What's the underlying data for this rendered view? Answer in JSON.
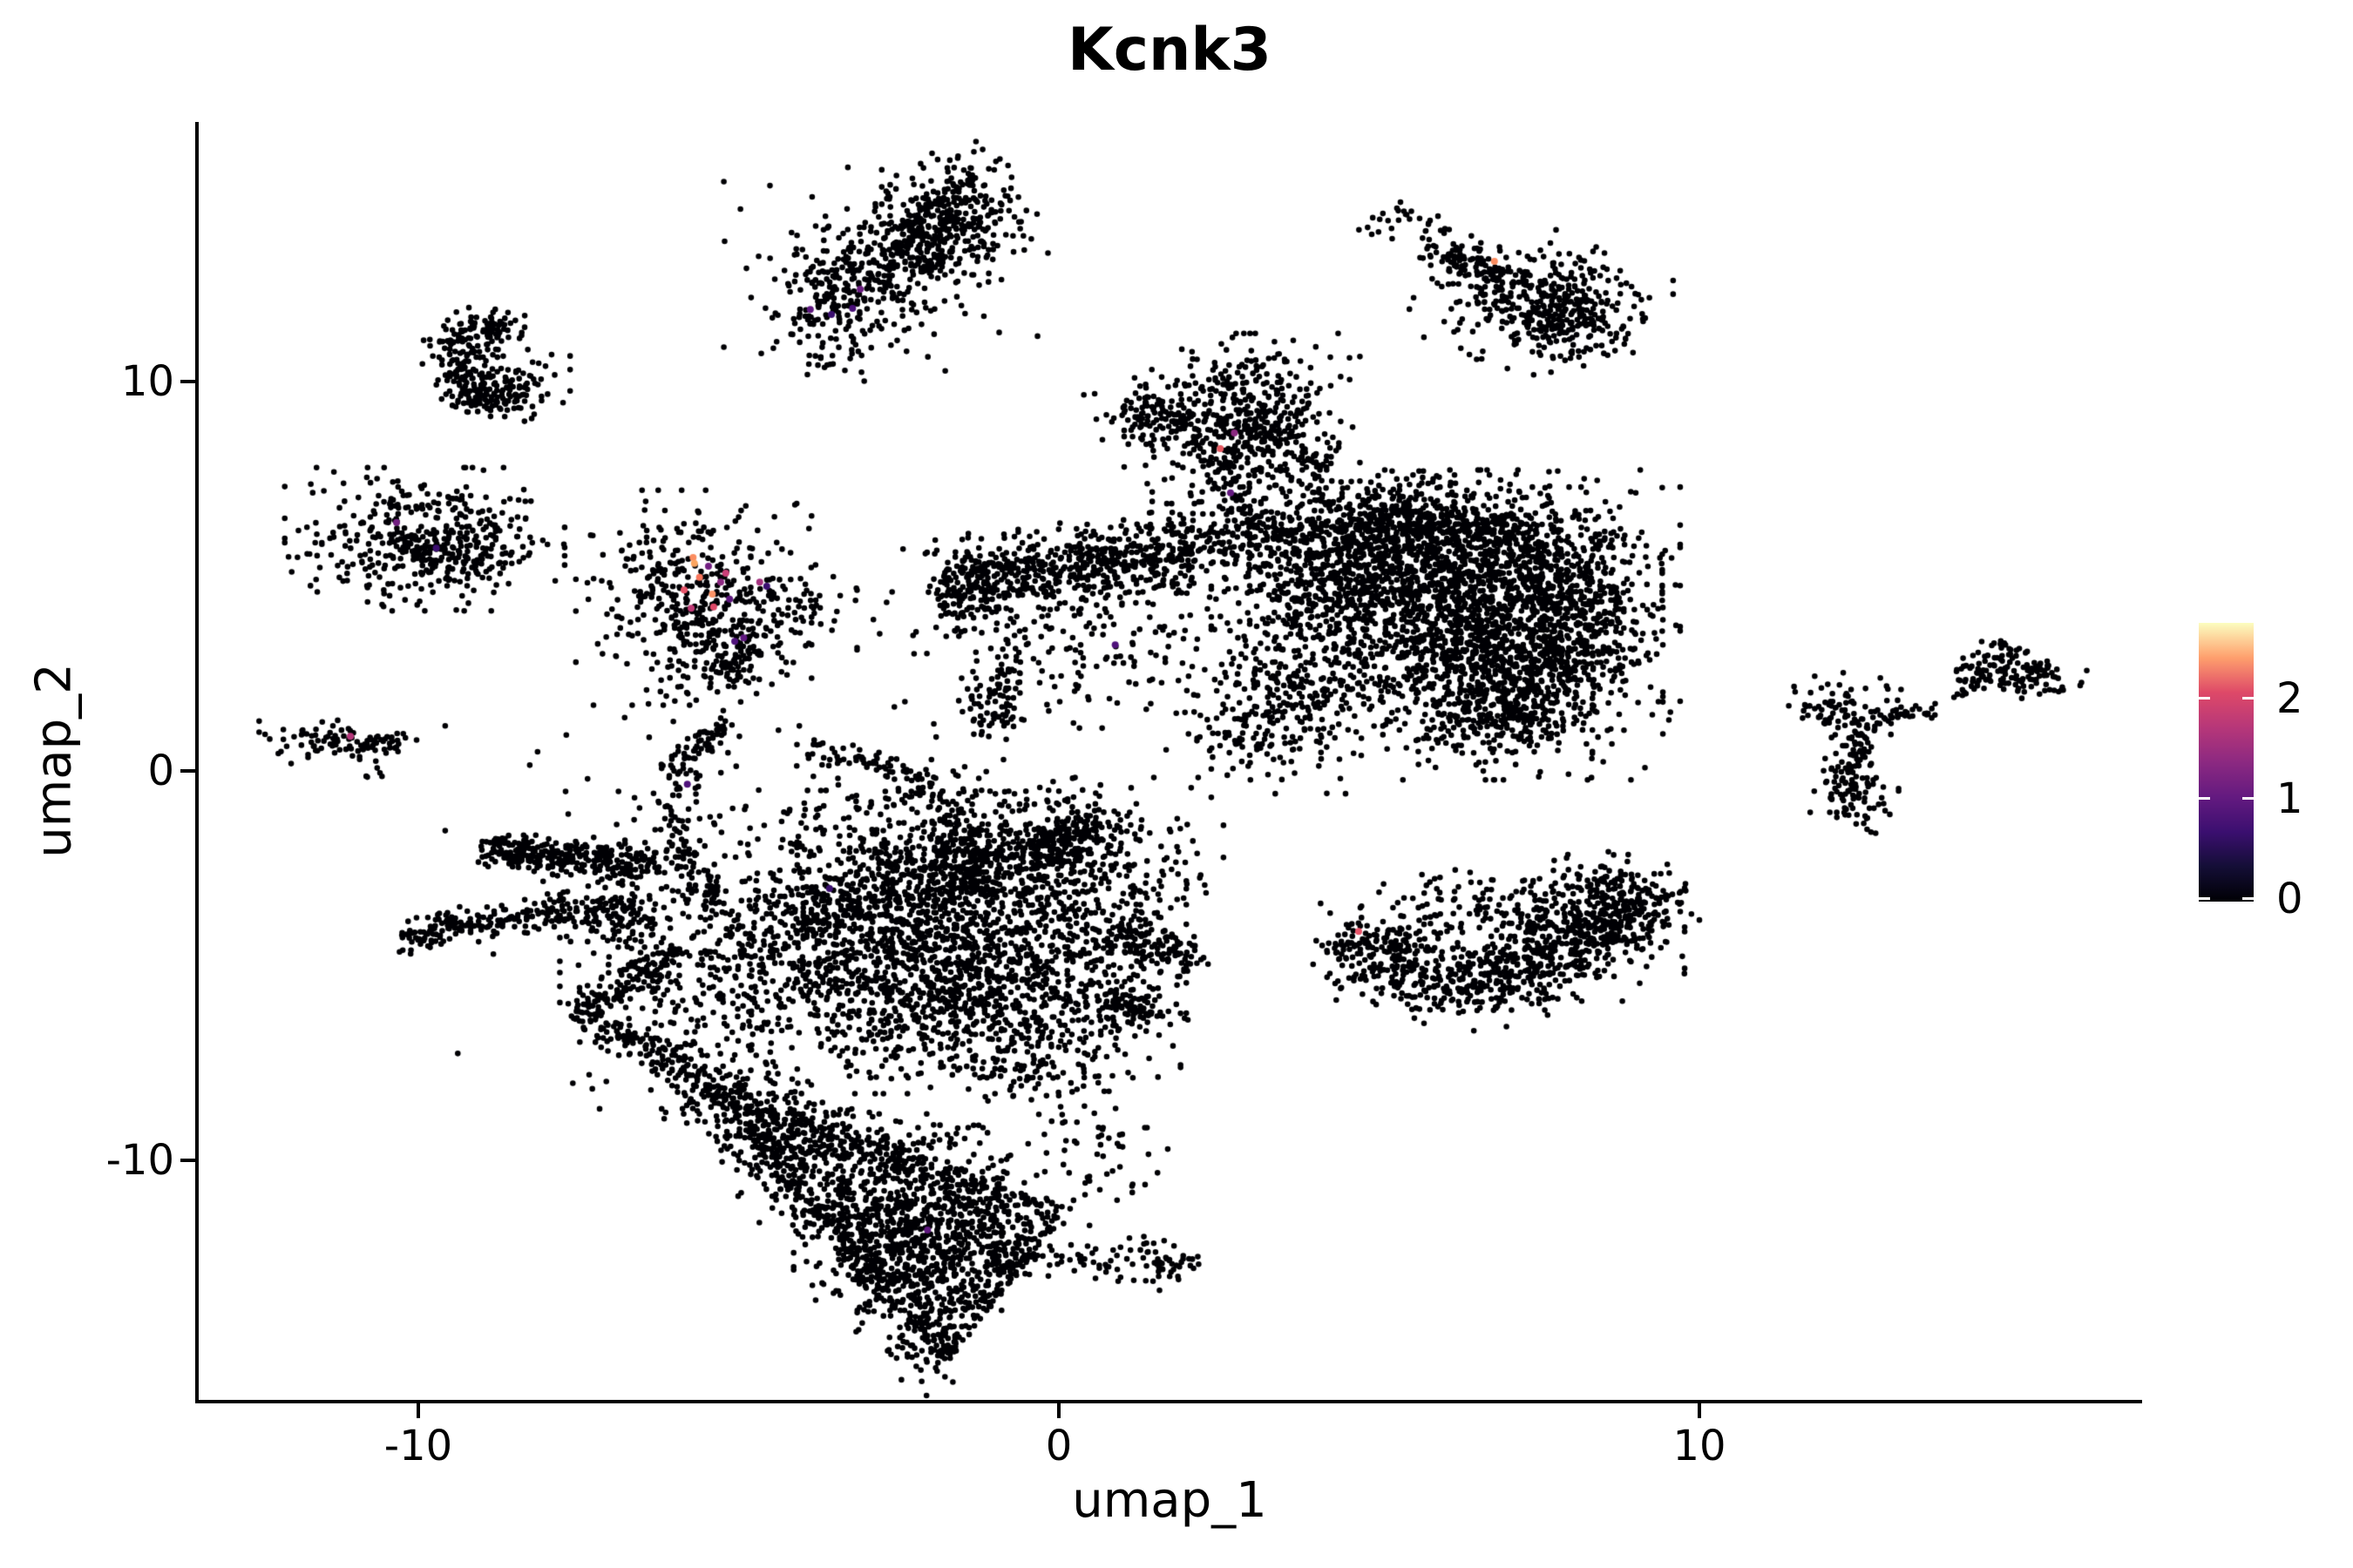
{
  "chart_data": {
    "type": "scatter",
    "title": "Kcnk3",
    "xlabel": "umap_1",
    "ylabel": "umap_2",
    "xlim": [
      -13.4,
      16.9
    ],
    "ylim": [
      -16.2,
      16.7
    ],
    "grid": false,
    "x_ticks": [
      {
        "value": -10,
        "label": "-10"
      },
      {
        "value": 0,
        "label": "0"
      },
      {
        "value": 10,
        "label": "10"
      }
    ],
    "y_ticks": [
      {
        "value": 10,
        "label": "10"
      },
      {
        "value": 0,
        "label": "0"
      },
      {
        "value": -10,
        "label": "-10"
      }
    ],
    "legend": {
      "position": "right",
      "colormap": "magma",
      "range": [
        0,
        2.76
      ],
      "gradient": [
        "#000004",
        "#140e36",
        "#3b0f70",
        "#641a80",
        "#8c2981",
        "#b73779",
        "#de4968",
        "#fe9f6d",
        "#fcfdbf"
      ],
      "ticks": [
        {
          "value": 2,
          "label": "2"
        },
        {
          "value": 1,
          "label": "1"
        },
        {
          "value": 0,
          "label": "0"
        }
      ]
    },
    "base_point_color": "#000004",
    "point_radius": 3.3,
    "expressed_point_radius": 4.0,
    "seed": 1234,
    "clusters": [
      {
        "shape": "band",
        "x1": -3.95,
        "y1": 11.55,
        "x2": -1.35,
        "y2": 14.55,
        "wx": 0.35,
        "wy": 0.8,
        "n": 520
      },
      {
        "shape": "blob",
        "cx": -1.5,
        "cy": 14.35,
        "rx": 0.55,
        "ry": 0.7,
        "n": 170
      },
      {
        "shape": "blob",
        "cx": -2.7,
        "cy": 13.0,
        "rx": 1.1,
        "ry": 1.3,
        "n": 110
      },
      {
        "shape": "blob",
        "cx": 5.35,
        "cy": 14.1,
        "rx": 0.3,
        "ry": 0.22,
        "n": 26
      },
      {
        "shape": "band",
        "x1": 5.85,
        "y1": 13.4,
        "x2": 7.1,
        "y2": 12.5,
        "wx": 0.12,
        "wy": 0.28,
        "n": 110
      },
      {
        "shape": "blob",
        "cx": 7.75,
        "cy": 11.95,
        "rx": 0.8,
        "ry": 0.85,
        "n": 230
      },
      {
        "shape": "blob",
        "cx": 7.95,
        "cy": 11.75,
        "rx": 0.45,
        "ry": 0.5,
        "n": 140
      },
      {
        "shape": "blob",
        "cx": 7.0,
        "cy": 12.3,
        "rx": 0.75,
        "ry": 0.75,
        "n": 55
      },
      {
        "shape": "arc",
        "cx": -8.93,
        "cy": 10.5,
        "rx": 0.5,
        "ry": 0.95,
        "a1": 60,
        "a2": 300,
        "w": 0.22,
        "n": 240
      },
      {
        "shape": "blob",
        "cx": -8.55,
        "cy": 9.9,
        "rx": 0.4,
        "ry": 0.4,
        "n": 90
      },
      {
        "shape": "blob",
        "cx": -9.9,
        "cy": 5.95,
        "rx": 0.95,
        "ry": 0.8,
        "n": 380
      },
      {
        "shape": "blob",
        "cx": -9.6,
        "cy": 5.6,
        "rx": 0.5,
        "ry": 0.4,
        "n": 80
      },
      {
        "shape": "blob",
        "cx": -5.7,
        "cy": 4.45,
        "rx": 0.8,
        "ry": 1.2,
        "n": 400
      },
      {
        "shape": "blob",
        "cx": -4.65,
        "cy": 4.1,
        "rx": 0.45,
        "ry": 0.7,
        "n": 60
      },
      {
        "shape": "band",
        "x1": -5.45,
        "y1": 3.3,
        "x2": -4.85,
        "y2": 2.3,
        "wx": 0.3,
        "wy": 0.35,
        "n": 80
      },
      {
        "shape": "blob",
        "cx": -3.7,
        "cy": 4.4,
        "rx": 0.35,
        "ry": 0.5,
        "n": 22
      },
      {
        "shape": "blob",
        "cx": -11.45,
        "cy": 0.75,
        "rx": 0.45,
        "ry": 0.28,
        "n": 65
      },
      {
        "shape": "band",
        "x1": -10.95,
        "y1": 0.65,
        "x2": -10.2,
        "y2": 0.72,
        "wx": 0.1,
        "wy": 0.13,
        "n": 35
      },
      {
        "shape": "blob",
        "cx": -10.72,
        "cy": -0.05,
        "rx": 0.12,
        "ry": 0.16,
        "n": 7
      },
      {
        "shape": "blob",
        "cx": 2.86,
        "cy": 9.05,
        "rx": 0.8,
        "ry": 0.95,
        "n": 430
      },
      {
        "shape": "band",
        "x1": 1.0,
        "y1": 9.3,
        "x2": 2.15,
        "y2": 8.8,
        "wx": 0.3,
        "wy": 0.4,
        "n": 110
      },
      {
        "shape": "band",
        "x1": 3.25,
        "y1": 8.85,
        "x2": 4.0,
        "y2": 7.75,
        "wx": 0.25,
        "wy": 0.35,
        "n": 90
      },
      {
        "shape": "band",
        "x1": 2.62,
        "y1": 8.2,
        "x2": 2.88,
        "y2": 6.4,
        "wx": 0.18,
        "wy": 0.4,
        "n": 80
      },
      {
        "shape": "blob",
        "cx": 2.8,
        "cy": 5.95,
        "rx": 0.5,
        "ry": 0.55,
        "n": 55
      },
      {
        "shape": "band",
        "x1": -1.7,
        "y1": 4.8,
        "x2": 2.3,
        "y2": 5.65,
        "wx": 0.3,
        "wy": 0.5,
        "n": 620
      },
      {
        "shape": "blob",
        "cx": -1.45,
        "cy": 4.75,
        "rx": 0.35,
        "ry": 0.5,
        "n": 70
      },
      {
        "shape": "blob",
        "cx": 0.3,
        "cy": 3.4,
        "rx": 1.5,
        "ry": 1.0,
        "n": 190
      },
      {
        "shape": "band",
        "x1": -0.68,
        "y1": 3.15,
        "x2": -1.02,
        "y2": 1.75,
        "wx": 0.12,
        "wy": 0.25,
        "n": 45
      },
      {
        "shape": "blob",
        "cx": -1.05,
        "cy": 1.5,
        "rx": 0.28,
        "ry": 0.3,
        "n": 45
      },
      {
        "shape": "band",
        "x1": 3.1,
        "y1": 6.1,
        "x2": 7.3,
        "y2": 6.15,
        "wx": 0.35,
        "wy": 0.35,
        "n": 320
      },
      {
        "shape": "blob",
        "cx": 5.3,
        "cy": 6.55,
        "rx": 0.75,
        "ry": 0.5,
        "n": 160
      },
      {
        "shape": "blob",
        "cx": 4.5,
        "cy": 5.3,
        "rx": 1.1,
        "ry": 1.0,
        "n": 450
      },
      {
        "shape": "blob",
        "cx": 6.2,
        "cy": 5.2,
        "rx": 1.4,
        "ry": 1.1,
        "n": 800
      },
      {
        "shape": "blob",
        "cx": 7.4,
        "cy": 4.3,
        "rx": 1.0,
        "ry": 1.3,
        "n": 550
      },
      {
        "shape": "blob",
        "cx": 5.6,
        "cy": 3.6,
        "rx": 1.4,
        "ry": 1.2,
        "n": 650
      },
      {
        "shape": "blob",
        "cx": 6.9,
        "cy": 2.3,
        "rx": 1.1,
        "ry": 1.1,
        "n": 450
      },
      {
        "shape": "blob",
        "cx": 3.4,
        "cy": 1.6,
        "rx": 0.75,
        "ry": 0.95,
        "n": 260
      },
      {
        "shape": "blob",
        "cx": 6.95,
        "cy": 1.7,
        "rx": 0.6,
        "ry": 0.75,
        "n": 200
      },
      {
        "shape": "blob",
        "cx": 8.1,
        "cy": 3.8,
        "rx": 0.45,
        "ry": 1.2,
        "n": 180
      },
      {
        "shape": "arc",
        "cx": -5.1,
        "cy": -1.1,
        "rx": 0.9,
        "ry": 2.2,
        "a1": 95,
        "a2": 262,
        "w": 0.17,
        "n": 160
      },
      {
        "shape": "arc",
        "cx": -4.2,
        "cy": -1.9,
        "rx": 2.7,
        "ry": 2.4,
        "a1": 85,
        "a2": -20,
        "w": 0.17,
        "n": 150
      },
      {
        "shape": "band",
        "x1": -9.0,
        "y1": -2.05,
        "x2": -7.0,
        "y2": -2.25,
        "wx": 0.14,
        "wy": 0.22,
        "n": 230
      },
      {
        "shape": "band",
        "x1": -7.0,
        "y1": -2.28,
        "x2": -6.3,
        "y2": -2.4,
        "wx": 0.14,
        "wy": 0.25,
        "n": 80
      },
      {
        "shape": "band",
        "x1": -10.25,
        "y1": -4.2,
        "x2": -7.7,
        "y2": -3.6,
        "wx": 0.14,
        "wy": 0.22,
        "n": 180
      },
      {
        "shape": "band",
        "x1": -7.7,
        "y1": -3.6,
        "x2": -6.4,
        "y2": -3.75,
        "wx": 0.2,
        "wy": 0.3,
        "n": 120
      },
      {
        "shape": "blob",
        "cx": -4.8,
        "cy": -4.9,
        "rx": 1.3,
        "ry": 1.7,
        "n": 520
      },
      {
        "shape": "band",
        "x1": -4.3,
        "y1": -3.9,
        "x2": 0.5,
        "y2": -1.6,
        "wx": 0.3,
        "wy": 0.45,
        "n": 330
      },
      {
        "shape": "blob",
        "cx": -2.3,
        "cy": -2.7,
        "rx": 1.1,
        "ry": 1.3,
        "n": 420
      },
      {
        "shape": "blob",
        "cx": -1.0,
        "cy": -4.2,
        "rx": 1.3,
        "ry": 1.6,
        "n": 650
      },
      {
        "shape": "blob",
        "cx": -2.5,
        "cy": -5.3,
        "rx": 1.0,
        "ry": 1.3,
        "n": 450
      },
      {
        "shape": "blob",
        "cx": -0.4,
        "cy": -6.4,
        "rx": 1.0,
        "ry": 1.2,
        "n": 380
      },
      {
        "shape": "blob",
        "cx": 0.5,
        "cy": -2.7,
        "rx": 0.9,
        "ry": 1.1,
        "n": 280
      },
      {
        "shape": "band",
        "x1": 0.9,
        "y1": -4.2,
        "x2": 2.1,
        "y2": -5.0,
        "wx": 0.15,
        "wy": 0.3,
        "n": 110
      },
      {
        "shape": "band",
        "x1": 0.5,
        "y1": -5.7,
        "x2": 1.7,
        "y2": -6.4,
        "wx": 0.15,
        "wy": 0.25,
        "n": 80
      },
      {
        "shape": "band",
        "x1": -0.5,
        "y1": -2.2,
        "x2": 0.75,
        "y2": -1.15,
        "wx": 0.18,
        "wy": 0.25,
        "n": 110
      },
      {
        "shape": "band",
        "x1": -5.9,
        "y1": -4.6,
        "x2": -7.55,
        "y2": -6.3,
        "wx": 0.12,
        "wy": 0.22,
        "n": 140
      },
      {
        "shape": "band",
        "x1": -7.3,
        "y1": -6.55,
        "x2": -5.7,
        "y2": -7.6,
        "wx": 0.12,
        "wy": 0.22,
        "n": 90
      },
      {
        "shape": "blob",
        "cx": -3.6,
        "cy": -3.6,
        "rx": 2.6,
        "ry": 2.6,
        "n": 270
      },
      {
        "shape": "tri",
        "x1": -5.8,
        "y1": -7.75,
        "x2": 0.2,
        "y2": -11.2,
        "x3": -1.8,
        "y3": -15.3,
        "n": 1150
      },
      {
        "shape": "band",
        "x1": -5.8,
        "y1": -7.75,
        "x2": -1.85,
        "y2": -15.1,
        "wx": 0.3,
        "wy": 0.5,
        "n": 380
      },
      {
        "shape": "band",
        "x1": -5.8,
        "y1": -7.75,
        "x2": 0.0,
        "y2": -11.1,
        "wx": 0.3,
        "wy": 0.45,
        "n": 230
      },
      {
        "shape": "blob",
        "cx": -2.3,
        "cy": -11.9,
        "rx": 0.8,
        "ry": 0.85,
        "n": 280
      },
      {
        "shape": "band",
        "x1": -1.05,
        "y1": -12.45,
        "x2": 0.85,
        "y2": -12.65,
        "wx": 0.12,
        "wy": 0.18,
        "n": 60
      },
      {
        "shape": "blob",
        "cx": 1.6,
        "cy": -12.65,
        "rx": 0.38,
        "ry": 0.3,
        "n": 55
      },
      {
        "shape": "blob",
        "cx": 0.55,
        "cy": -10.0,
        "rx": 0.5,
        "ry": 0.6,
        "n": 40
      },
      {
        "shape": "band",
        "x1": 4.4,
        "y1": -4.5,
        "x2": 6.6,
        "y2": -5.5,
        "wx": 0.3,
        "wy": 0.55,
        "n": 330
      },
      {
        "shape": "band",
        "x1": 6.6,
        "y1": -5.5,
        "x2": 9.1,
        "y2": -3.6,
        "wx": 0.3,
        "wy": 0.55,
        "n": 330
      },
      {
        "shape": "blob",
        "cx": 7.7,
        "cy": -4.3,
        "rx": 0.9,
        "ry": 0.7,
        "n": 260
      },
      {
        "shape": "band",
        "x1": 5.2,
        "y1": -3.7,
        "x2": 8.5,
        "y2": -2.95,
        "wx": 0.3,
        "wy": 0.4,
        "n": 110
      },
      {
        "shape": "blob",
        "cx": 8.85,
        "cy": -3.3,
        "rx": 0.5,
        "ry": 0.5,
        "n": 140
      },
      {
        "shape": "blob",
        "cx": 12.35,
        "cy": 1.6,
        "rx": 0.45,
        "ry": 0.4,
        "n": 85
      },
      {
        "shape": "band",
        "x1": 12.8,
        "y1": 1.5,
        "x2": 13.55,
        "y2": 1.45,
        "wx": 0.1,
        "wy": 0.12,
        "n": 30
      },
      {
        "shape": "band",
        "x1": 12.55,
        "y1": 1.1,
        "x2": 12.42,
        "y2": 0.05,
        "wx": 0.1,
        "wy": 0.18,
        "n": 40
      },
      {
        "shape": "blob",
        "cx": 12.42,
        "cy": -0.5,
        "rx": 0.3,
        "ry": 0.5,
        "n": 100
      },
      {
        "shape": "band",
        "x1": 14.0,
        "y1": 1.95,
        "x2": 14.55,
        "y2": 2.55,
        "wx": 0.08,
        "wy": 0.1,
        "n": 20
      },
      {
        "shape": "blob",
        "cx": 14.85,
        "cy": 2.55,
        "rx": 0.5,
        "ry": 0.28,
        "rot": -15,
        "n": 120
      },
      {
        "shape": "blob",
        "cx": 14.7,
        "cy": 3.1,
        "rx": 0.14,
        "ry": 0.2,
        "n": 14
      }
    ],
    "expressed_points": [
      {
        "x": -3.88,
        "y": 11.85,
        "c": "#5f187f"
      },
      {
        "x": -3.55,
        "y": 11.72,
        "c": "#3b0f70"
      },
      {
        "x": -3.1,
        "y": 12.37,
        "c": "#6b1d81"
      },
      {
        "x": -3.22,
        "y": 11.88,
        "c": "#4a1079"
      },
      {
        "x": 6.8,
        "y": 13.09,
        "c": "#fb8d60"
      },
      {
        "x": -10.34,
        "y": 6.38,
        "c": "#721f81"
      },
      {
        "x": -9.72,
        "y": 5.72,
        "c": "#3b0f70"
      },
      {
        "x": -5.71,
        "y": 5.48,
        "c": "#fb8d60"
      },
      {
        "x": -5.69,
        "y": 5.33,
        "c": "#fca55f"
      },
      {
        "x": -5.47,
        "y": 5.26,
        "c": "#721f81"
      },
      {
        "x": -5.2,
        "y": 5.08,
        "c": "#cb3f78"
      },
      {
        "x": -5.28,
        "y": 4.85,
        "c": "#8c2981"
      },
      {
        "x": -4.67,
        "y": 4.85,
        "c": "#a3307e"
      },
      {
        "x": -5.85,
        "y": 4.65,
        "c": "#e8556a"
      },
      {
        "x": -5.41,
        "y": 4.54,
        "c": "#fc9467"
      },
      {
        "x": -5.74,
        "y": 4.18,
        "c": "#c03a76"
      },
      {
        "x": -5.14,
        "y": 4.41,
        "c": "#5f187f"
      },
      {
        "x": -5.39,
        "y": 4.21,
        "c": "#de4968"
      },
      {
        "x": -4.56,
        "y": 4.74,
        "c": "#3b0f70"
      },
      {
        "x": -4.92,
        "y": 3.42,
        "c": "#5f187f"
      },
      {
        "x": -5.06,
        "y": 3.33,
        "c": "#4f127b"
      },
      {
        "x": -5.61,
        "y": 4.97,
        "c": "#f8765c"
      },
      {
        "x": -11.06,
        "y": 0.89,
        "c": "#b5367a"
      },
      {
        "x": 2.52,
        "y": 8.28,
        "c": "#e75a63"
      },
      {
        "x": 2.74,
        "y": 8.68,
        "c": "#8c2981"
      },
      {
        "x": 2.68,
        "y": 7.14,
        "c": "#641a80"
      },
      {
        "x": 0.88,
        "y": 3.24,
        "c": "#4f127b"
      },
      {
        "x": -3.58,
        "y": -3.02,
        "c": "#3b0f70"
      },
      {
        "x": -5.8,
        "y": -0.34,
        "c": "#4f127b"
      },
      {
        "x": -2.05,
        "y": -11.79,
        "c": "#5f187f"
      },
      {
        "x": 4.68,
        "y": -4.12,
        "c": "#e8556a"
      }
    ]
  }
}
